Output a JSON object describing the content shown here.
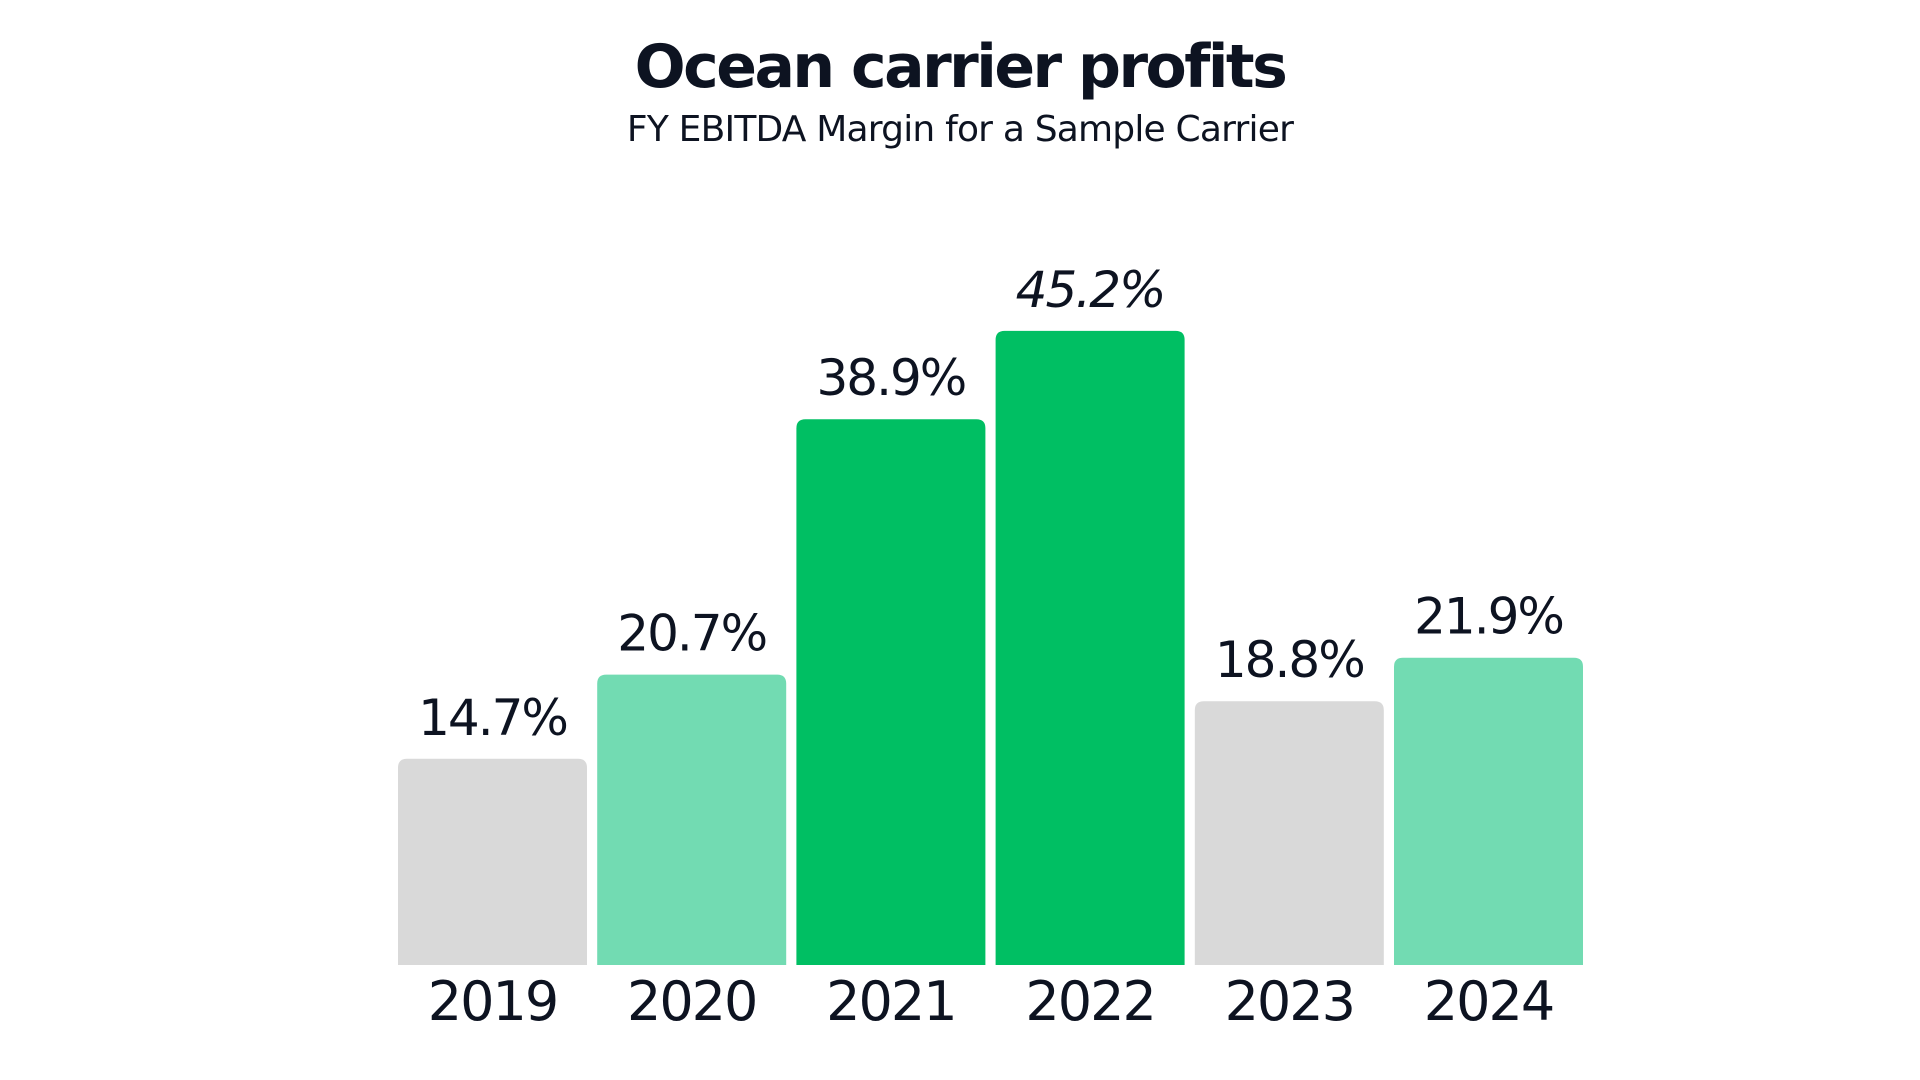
{
  "chart_data": {
    "type": "bar",
    "title": "Ocean carrier profits",
    "subtitle": "FY EBITDA Margin for a Sample Carrier",
    "categories": [
      "2019",
      "2020",
      "2021",
      "2022",
      "2023",
      "2024"
    ],
    "values": [
      14.7,
      20.7,
      38.9,
      45.2,
      18.8,
      21.9
    ],
    "data_labels": [
      "14.7%",
      "20.7%",
      "38.9%",
      "45.2%",
      "18.8%",
      "21.9%"
    ],
    "colors": [
      "#d9d9d9",
      "#72dbb2",
      "#00bf63",
      "#00bf63",
      "#d9d9d9",
      "#72dbb2"
    ],
    "ylim": [
      0,
      50
    ],
    "grid": false,
    "legend": "none"
  }
}
